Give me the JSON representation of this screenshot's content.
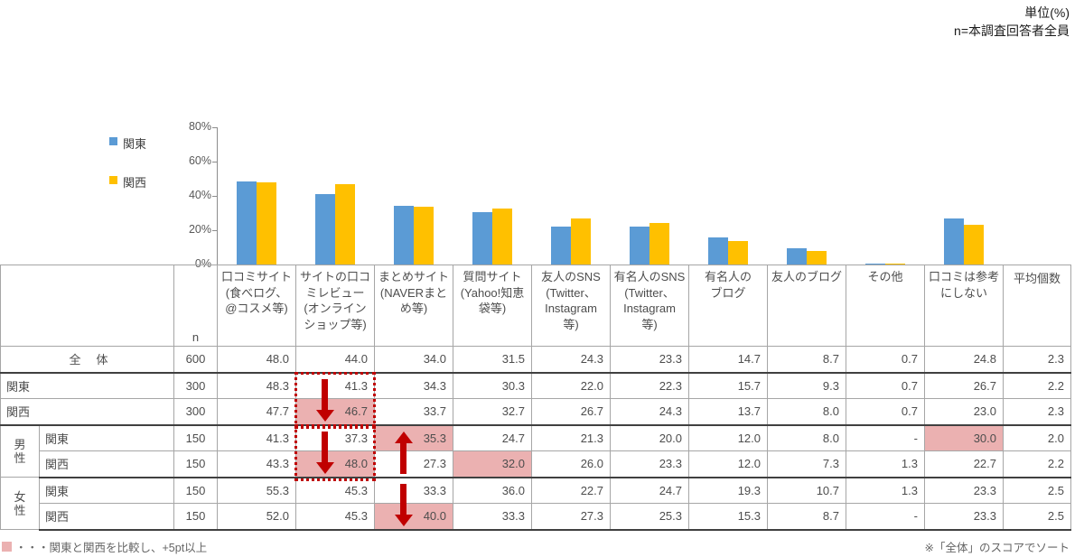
{
  "top_note": {
    "line1": "単位(%)",
    "line2": "n=本調査回答者全員"
  },
  "legend": {
    "items": [
      {
        "label": "関東",
        "color": "#5B9BD5"
      },
      {
        "label": "関西",
        "color": "#FFC000"
      }
    ]
  },
  "chart_data": {
    "type": "bar",
    "title": "",
    "categories": [
      "口コミサイト(食べログ、@コスメ等)",
      "サイトの口コミレビュー(オンラインショップ等)",
      "まとめサイト(NAVERまとめ等)",
      "質問サイト(Yahoo!知恵袋等)",
      "友人のSNS(Twitter、Instagram等)",
      "有名人のSNS(Twitter、Instagram等)",
      "有名人のブログ",
      "友人のブログ",
      "その他",
      "口コミは参考にしない"
    ],
    "series": [
      {
        "name": "関東",
        "color": "#5B9BD5",
        "values": [
          48.3,
          41.3,
          34.3,
          30.3,
          22.0,
          22.3,
          15.7,
          9.3,
          0.7,
          26.7
        ]
      },
      {
        "name": "関西",
        "color": "#FFC000",
        "values": [
          47.7,
          46.7,
          33.7,
          32.7,
          26.7,
          24.3,
          13.7,
          8.0,
          0.7,
          23.0
        ]
      }
    ],
    "xlabel": "",
    "ylabel": "",
    "ylim": [
      0,
      80
    ],
    "yticks": [
      "80%",
      "60%",
      "40%",
      "20%",
      "0%"
    ],
    "grid": false,
    "legend_position": "left"
  },
  "table": {
    "n_label": "n",
    "col_headers": [
      "口コミサイト\n(食べログ、\n@コスメ等)",
      "サイトの口コ\nミレビュー\n(オンライン\nショップ等)",
      "まとめサイト\n(NAVERまと\nめ等)",
      "質問サイト\n(Yahoo!知恵\n袋等)",
      "友人のSNS\n(Twitter、\nInstagram\n等)",
      "有名人のSNS\n(Twitter、\nInstagram\n等)",
      "有名人の\nブログ",
      "友人のブログ",
      "その他",
      "口コミは参考\nにしない"
    ],
    "avg_header": "平均個数",
    "rows": [
      {
        "label": "全　体",
        "n": "600",
        "values": [
          "48.0",
          "44.0",
          "34.0",
          "31.5",
          "24.3",
          "23.3",
          "14.7",
          "8.7",
          "0.7",
          "24.8"
        ],
        "avg": "2.3",
        "pink": []
      },
      {
        "label": "関東",
        "n": "300",
        "values": [
          "48.3",
          "41.3",
          "34.3",
          "30.3",
          "22.0",
          "22.3",
          "15.7",
          "9.3",
          "0.7",
          "26.7"
        ],
        "avg": "2.2",
        "pink": []
      },
      {
        "label": "関西",
        "n": "300",
        "values": [
          "47.7",
          "46.7",
          "33.7",
          "32.7",
          "26.7",
          "24.3",
          "13.7",
          "8.0",
          "0.7",
          "23.0"
        ],
        "avg": "2.3",
        "pink": [
          1
        ]
      },
      {
        "group": "男性",
        "label": "関東",
        "n": "150",
        "values": [
          "41.3",
          "37.3",
          "35.3",
          "24.7",
          "21.3",
          "20.0",
          "12.0",
          "8.0",
          "-",
          "30.0"
        ],
        "avg": "2.0",
        "pink": [
          2,
          9
        ]
      },
      {
        "label": "関西",
        "n": "150",
        "values": [
          "43.3",
          "48.0",
          "27.3",
          "32.0",
          "26.0",
          "23.3",
          "12.0",
          "7.3",
          "1.3",
          "22.7"
        ],
        "avg": "2.2",
        "pink": [
          1,
          3
        ]
      },
      {
        "group": "女性",
        "label": "関東",
        "n": "150",
        "values": [
          "55.3",
          "45.3",
          "33.3",
          "36.0",
          "22.7",
          "24.7",
          "19.3",
          "10.7",
          "1.3",
          "23.3"
        ],
        "avg": "2.5",
        "pink": []
      },
      {
        "label": "関西",
        "n": "150",
        "values": [
          "52.0",
          "45.3",
          "40.0",
          "33.3",
          "27.3",
          "25.3",
          "15.3",
          "8.7",
          "-",
          "23.3"
        ],
        "avg": "2.5",
        "pink": [
          2
        ]
      }
    ],
    "annotations": [
      {
        "kind": "down",
        "box": true,
        "col": 1,
        "row": 1,
        "span": 2
      },
      {
        "kind": "down",
        "box": true,
        "col": 1,
        "row": 3,
        "span": 2
      },
      {
        "kind": "up",
        "box": false,
        "col": 2,
        "row": 3,
        "span": 2
      },
      {
        "kind": "down",
        "box": false,
        "col": 2,
        "row": 5,
        "span": 2
      }
    ],
    "highlight_color": "#EBB1B1",
    "arrow_color": "#C00000"
  },
  "footer": {
    "legend_text": "・・・関東と関西を比較し、+5pt以上",
    "sort_note": "※「全体」のスコアでソート"
  }
}
